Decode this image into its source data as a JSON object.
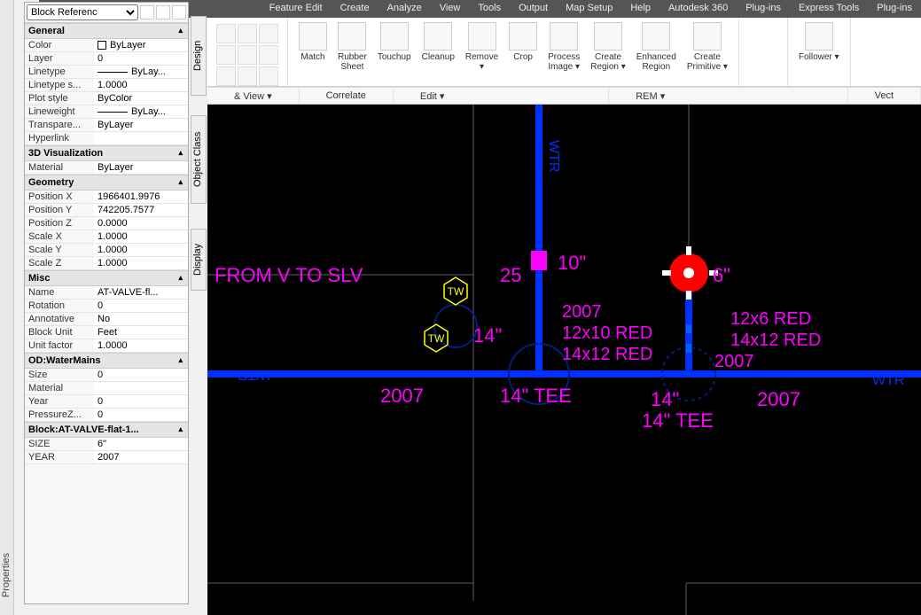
{
  "menubar": [
    "Feature Edit",
    "Create",
    "Analyze",
    "View",
    "Tools",
    "Output",
    "Map Setup",
    "Help",
    "Autodesk 360",
    "Plug-ins",
    "Express Tools",
    "Plug-ins"
  ],
  "ribbon": {
    "buttons": [
      {
        "label": "Match"
      },
      {
        "label": "Rubber Sheet"
      },
      {
        "label": "Touchup"
      },
      {
        "label": "Cleanup"
      },
      {
        "label": "Remove ▾"
      },
      {
        "label": "Crop"
      },
      {
        "label": "Process Image ▾"
      },
      {
        "label": "Create Region ▾"
      },
      {
        "label": "Enhanced Region"
      },
      {
        "label": "Create Primitive ▾"
      },
      {
        "label": "Follower ▾"
      }
    ],
    "panels": [
      "& View ▾",
      "Correlate",
      "Edit ▾",
      "REM ▾",
      "Vect"
    ]
  },
  "sideTabs": {
    "design": "Design",
    "objclass": "Object Class",
    "display": "Display"
  },
  "vstrip": {
    "label": "Properties"
  },
  "props": {
    "selector": "Block Referenc",
    "general": {
      "title": "General",
      "rows": [
        [
          "Color",
          "ByLayer",
          "swatch"
        ],
        [
          "Layer",
          "0"
        ],
        [
          "Linetype",
          "ByLay...",
          "line"
        ],
        [
          "Linetype s...",
          "1.0000"
        ],
        [
          "Plot style",
          "ByColor"
        ],
        [
          "Lineweight",
          "ByLay...",
          "line"
        ],
        [
          "Transpare...",
          "ByLayer"
        ],
        [
          "Hyperlink",
          ""
        ]
      ]
    },
    "vis": {
      "title": "3D Visualization",
      "rows": [
        [
          "Material",
          "ByLayer"
        ]
      ]
    },
    "geom": {
      "title": "Geometry",
      "rows": [
        [
          "Position X",
          "1966401.9976"
        ],
        [
          "Position Y",
          "742205.7577"
        ],
        [
          "Position Z",
          "0.0000"
        ],
        [
          "Scale X",
          "1.0000"
        ],
        [
          "Scale Y",
          "1.0000"
        ],
        [
          "Scale Z",
          "1.0000"
        ]
      ]
    },
    "misc": {
      "title": "Misc",
      "rows": [
        [
          "Name",
          "AT-VALVE-fl..."
        ],
        [
          "Rotation",
          "0"
        ],
        [
          "Annotative",
          "No"
        ],
        [
          "Block Unit",
          "Feet"
        ],
        [
          "Unit factor",
          "1.0000"
        ]
      ]
    },
    "od": {
      "title": "OD:WaterMains",
      "rows": [
        [
          "Size",
          "0"
        ],
        [
          "Material",
          ""
        ],
        [
          "Year",
          "0"
        ],
        [
          "PressureZ...",
          "0"
        ]
      ]
    },
    "blk": {
      "title": "Block:AT-VALVE-flat-1...",
      "rows": [
        [
          "SIZE",
          "6\""
        ],
        [
          "YEAR",
          "2007"
        ]
      ]
    }
  },
  "canvas": {
    "colors": {
      "pipe": "#0030ff",
      "pipe_grid": "#606060",
      "text": "#ff00ff",
      "tw": "#ffff00",
      "valve": "#ff0000",
      "marker": "#ff00ff",
      "circle": "#003090"
    },
    "labels": {
      "fromv": "FROM V TO SLV",
      "tw": "TW",
      "v25": "25",
      "v10": "10\"",
      "v6": "6\"",
      "y2007": "2007",
      "v14": "14\"",
      "r12x10": "12x10 RED",
      "r14x12": "14x12 RED",
      "r12x6": "12x6 RED",
      "tee": "14\" TEE",
      "wtr": "WTR"
    },
    "pipe_width": 8
  }
}
